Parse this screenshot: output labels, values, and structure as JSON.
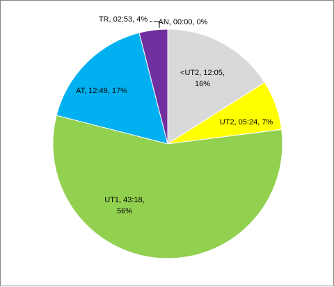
{
  "chart_data": {
    "type": "pie",
    "title": "",
    "start_angle_deg": 0,
    "direction": "clockwise",
    "legend": "none",
    "slices": [
      {
        "name": "<UT2",
        "value_label": "12:05",
        "value": 16,
        "percent_label": "16%",
        "color": "#d9d9d9",
        "label_lines": [
          "<UT2, 12:05,",
          "16%"
        ]
      },
      {
        "name": "UT2",
        "value_label": "05:24",
        "value": 7,
        "percent_label": "7%",
        "color": "#ffff00",
        "label_lines": [
          "UT2, 05:24, 7%"
        ]
      },
      {
        "name": "UT1",
        "value_label": "43:18",
        "value": 56,
        "percent_label": "56%",
        "color": "#92d050",
        "label_lines": [
          "UT1, 43:18,",
          "56%"
        ]
      },
      {
        "name": "AT",
        "value_label": "12:49",
        "value": 17,
        "percent_label": "17%",
        "color": "#00b0f0",
        "label_lines": [
          "AT, 12:49, 17%"
        ]
      },
      {
        "name": "TR",
        "value_label": "02:53",
        "value": 4,
        "percent_label": "4%",
        "color": "#7030a0",
        "label_lines": [
          "TR, 02:53, 4%"
        ]
      },
      {
        "name": "AN",
        "value_label": "00:00",
        "value": 0,
        "percent_label": "0%",
        "color": "#c00000",
        "label_lines": [
          "AN, 00:00, 0%"
        ]
      }
    ]
  }
}
